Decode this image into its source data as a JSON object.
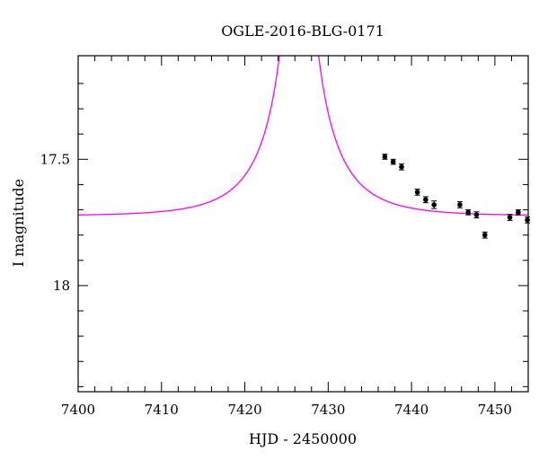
{
  "chart_data": {
    "type": "scatter",
    "title": "OGLE-2016-BLG-0171",
    "xlabel": "HJD - 2450000",
    "ylabel": "I magnitude",
    "xlim": [
      7400,
      7454
    ],
    "ylim": [
      18.42,
      17.09
    ],
    "y_inverted": true,
    "x_ticks": [
      7400,
      7410,
      7420,
      7430,
      7440,
      7450
    ],
    "y_ticks": [
      17.5,
      18
    ],
    "x_tick_labels": [
      "7400",
      "7410",
      "7420",
      "7430",
      "7440",
      "7450"
    ],
    "y_tick_labels": [
      "17.5",
      "18"
    ],
    "grid": false,
    "colors": {
      "model": "#ff00ff",
      "points": "#000000",
      "frame": "#000000"
    },
    "model": {
      "type": "point-lens",
      "t0": 7426.5,
      "u0": 0.05,
      "tE": 7.5,
      "baseline_mag": 17.724,
      "blend_fraction": 0.35
    },
    "series": [
      {
        "x": [
          7436.8,
          7437.8,
          7438.8,
          7440.7,
          7441.7,
          7442.7,
          7445.8,
          7446.8,
          7447.8,
          7448.8,
          7451.8,
          7452.8,
          7453.9
        ],
        "y": [
          17.49,
          17.51,
          17.53,
          17.63,
          17.66,
          17.68,
          17.68,
          17.71,
          17.72,
          17.8,
          17.73,
          17.71,
          17.74
        ],
        "err": [
          0.01,
          0.01,
          0.012,
          0.012,
          0.012,
          0.015,
          0.012,
          0.01,
          0.012,
          0.012,
          0.012,
          0.01,
          0.012
        ]
      }
    ]
  }
}
